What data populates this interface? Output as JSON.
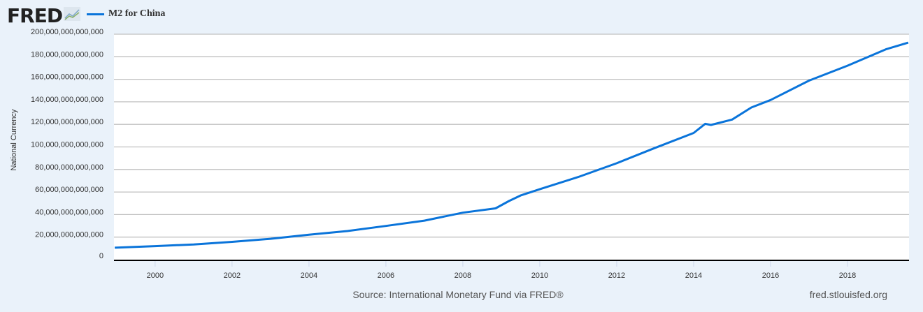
{
  "logo": "FRED",
  "footer": {
    "source": "Source: International Monetary Fund via FRED®",
    "site": "fred.stlouisfed.org"
  },
  "colors": {
    "series": "#0a74da",
    "grid": "#c0c0c0",
    "bg": "#eaf2fa"
  },
  "chart_data": {
    "type": "line",
    "title": "",
    "legend": [
      "M2 for China"
    ],
    "legend_position": "top-left",
    "xlabel": "",
    "ylabel": "National Currency",
    "xlim": [
      1998.93,
      2019.6
    ],
    "ylim": [
      0,
      200000000000000
    ],
    "grid": true,
    "x_ticks": [
      "2000",
      "2002",
      "2004",
      "2006",
      "2008",
      "2010",
      "2012",
      "2014",
      "2016",
      "2018"
    ],
    "y_ticks": [
      "0",
      "20,000,000,000,000",
      "40,000,000,000,000",
      "60,000,000,000,000",
      "80,000,000,000,000",
      "100,000,000,000,000",
      "120,000,000,000,000",
      "140,000,000,000,000",
      "160,000,000,000,000",
      "180,000,000,000,000",
      "200,000,000,000,000"
    ],
    "series": [
      {
        "name": "M2 for China",
        "unit": "trillion",
        "x": [
          1998.95,
          2000,
          2001,
          2002,
          2003,
          2004,
          2005,
          2006,
          2007,
          2008,
          2008.85,
          2009.2,
          2009.5,
          2010,
          2011,
          2012,
          2013,
          2014,
          2014.3,
          2014.45,
          2015,
          2015.5,
          2016,
          2017,
          2018,
          2019,
          2019.58
        ],
        "y": [
          10.6,
          12.0,
          13.5,
          15.8,
          18.5,
          22.1,
          25.4,
          29.9,
          34.6,
          41.7,
          45.5,
          52,
          56.9,
          62.5,
          73.3,
          85.5,
          99.2,
          112.4,
          120.5,
          119.5,
          124.3,
          135,
          141.6,
          158.8,
          172.1,
          186.6,
          192.5
        ]
      }
    ]
  }
}
